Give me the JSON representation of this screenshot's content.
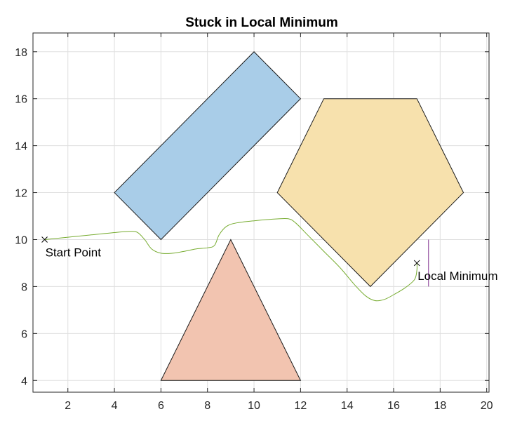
{
  "chart_data": {
    "type": "scatter",
    "title": "Stuck in Local Minimum",
    "xlabel": "",
    "ylabel": "",
    "xlim": [
      0.5,
      20.1
    ],
    "ylim": [
      3.5,
      18.8
    ],
    "xticks": [
      2,
      4,
      6,
      8,
      10,
      12,
      14,
      16,
      18,
      20
    ],
    "yticks": [
      4,
      6,
      8,
      10,
      12,
      14,
      16,
      18
    ],
    "grid": true,
    "obstacles": [
      {
        "name": "rectangle",
        "color": "#a9cde8",
        "vertices": [
          [
            4,
            12
          ],
          [
            10,
            18
          ],
          [
            12,
            16
          ],
          [
            6,
            10
          ]
        ]
      },
      {
        "name": "pentagon",
        "color": "#f7e1ad",
        "vertices": [
          [
            13,
            16
          ],
          [
            17,
            16
          ],
          [
            19,
            12
          ],
          [
            15,
            8
          ],
          [
            11,
            12
          ]
        ]
      },
      {
        "name": "triangle",
        "color": "#f2c4b0",
        "vertices": [
          [
            6,
            4
          ],
          [
            12,
            4
          ],
          [
            9,
            10
          ]
        ]
      }
    ],
    "path": {
      "color": "#77ac30",
      "points": [
        [
          1,
          10
        ],
        [
          2,
          10.1
        ],
        [
          3,
          10.2
        ],
        [
          4,
          10.3
        ],
        [
          4.7,
          10.35
        ],
        [
          5.0,
          10.3
        ],
        [
          5.3,
          10.0
        ],
        [
          5.6,
          9.6
        ],
        [
          6.0,
          9.42
        ],
        [
          6.5,
          9.42
        ],
        [
          7.0,
          9.5
        ],
        [
          7.5,
          9.6
        ],
        [
          8.0,
          9.65
        ],
        [
          8.3,
          9.75
        ],
        [
          8.5,
          10.2
        ],
        [
          8.8,
          10.55
        ],
        [
          9.2,
          10.7
        ],
        [
          10,
          10.8
        ],
        [
          11,
          10.88
        ],
        [
          11.5,
          10.88
        ],
        [
          11.8,
          10.7
        ],
        [
          12.3,
          10.2
        ],
        [
          13,
          9.5
        ],
        [
          13.7,
          8.8
        ],
        [
          14.3,
          8.1
        ],
        [
          14.8,
          7.6
        ],
        [
          15.2,
          7.4
        ],
        [
          15.6,
          7.45
        ],
        [
          16.0,
          7.65
        ],
        [
          16.5,
          7.95
        ],
        [
          16.9,
          8.3
        ],
        [
          17,
          8.7
        ],
        [
          17,
          9
        ]
      ]
    },
    "markers": [
      {
        "label": "Start Point",
        "x": 1,
        "y": 10
      },
      {
        "label": "Local Minimum",
        "x": 17,
        "y": 9
      }
    ],
    "vertical_line": {
      "color": "#7e2f8e",
      "x": 17.5,
      "y_from": 8.0,
      "y_to": 10.0
    }
  }
}
